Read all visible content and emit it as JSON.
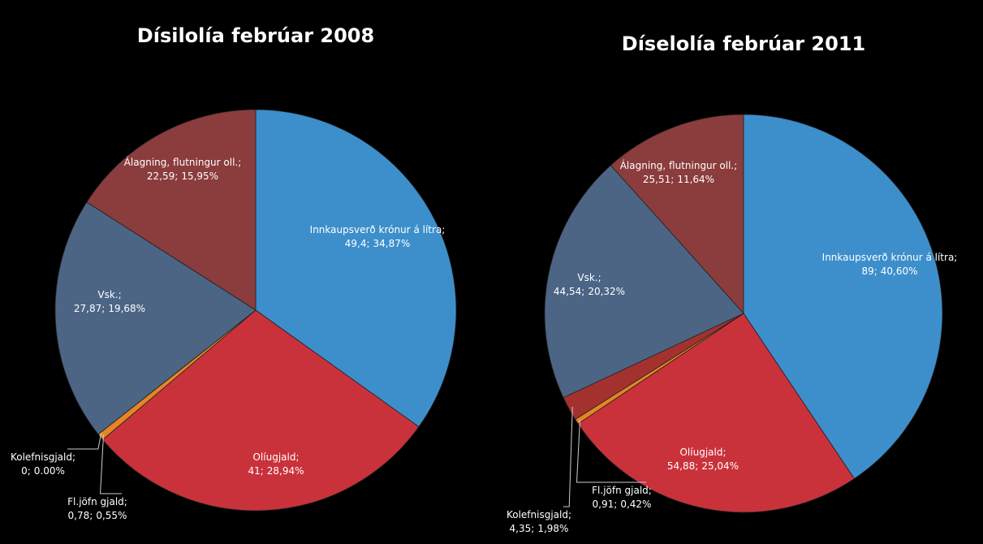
{
  "chart_data": [
    {
      "type": "pie",
      "title": "Dísilolía febrúar 2008",
      "categories": [
        "Innkaupsverð krónur á lítra;",
        "Olíugjald;",
        "Fl.jöfn gjald;",
        "Kolefnisgjald;",
        "Vsk.;",
        "Álagning, flutningur oll.;"
      ],
      "values": [
        49.4,
        41,
        0.78,
        0,
        27.87,
        22.59
      ],
      "value_labels": [
        "49,4;",
        "41;",
        "0,78;",
        "0;",
        "27,87;",
        "22,59;"
      ],
      "percents": [
        34.87,
        28.94,
        0.55,
        0,
        19.68,
        15.95
      ],
      "percent_labels": [
        "34,87%",
        "28,94%",
        "0,55%",
        "0.00%",
        "19,68%",
        "15,95%"
      ],
      "colors": [
        "#3d8fcb",
        "#c9323b",
        "#e58524",
        "#a3322f",
        "#4c6585",
        "#8b3c3c"
      ]
    },
    {
      "type": "pie",
      "title": "Díselolía febrúar 2011",
      "categories": [
        "Innkaupsverð krónur á lítra;",
        "Olíugjald;",
        "Fl.jöfn gjald;",
        "Kolefnisgjald;",
        "Vsk.;",
        "Álagning, flutningur oll.;"
      ],
      "values": [
        89,
        54.88,
        0.91,
        4.35,
        44.54,
        25.51
      ],
      "value_labels": [
        "89;",
        "54,88;",
        "0,91;",
        "4,35;",
        "44,54;",
        "25,51;"
      ],
      "percents": [
        40.6,
        25.04,
        0.42,
        1.98,
        20.32,
        11.64
      ],
      "percent_labels": [
        "40,60%",
        "25,04%",
        "0,42%",
        "1,98%",
        "20,32%",
        "11,64%"
      ],
      "colors": [
        "#3d8fcb",
        "#c9323b",
        "#e58524",
        "#a3322f",
        "#4c6585",
        "#8b3c3c"
      ]
    }
  ]
}
